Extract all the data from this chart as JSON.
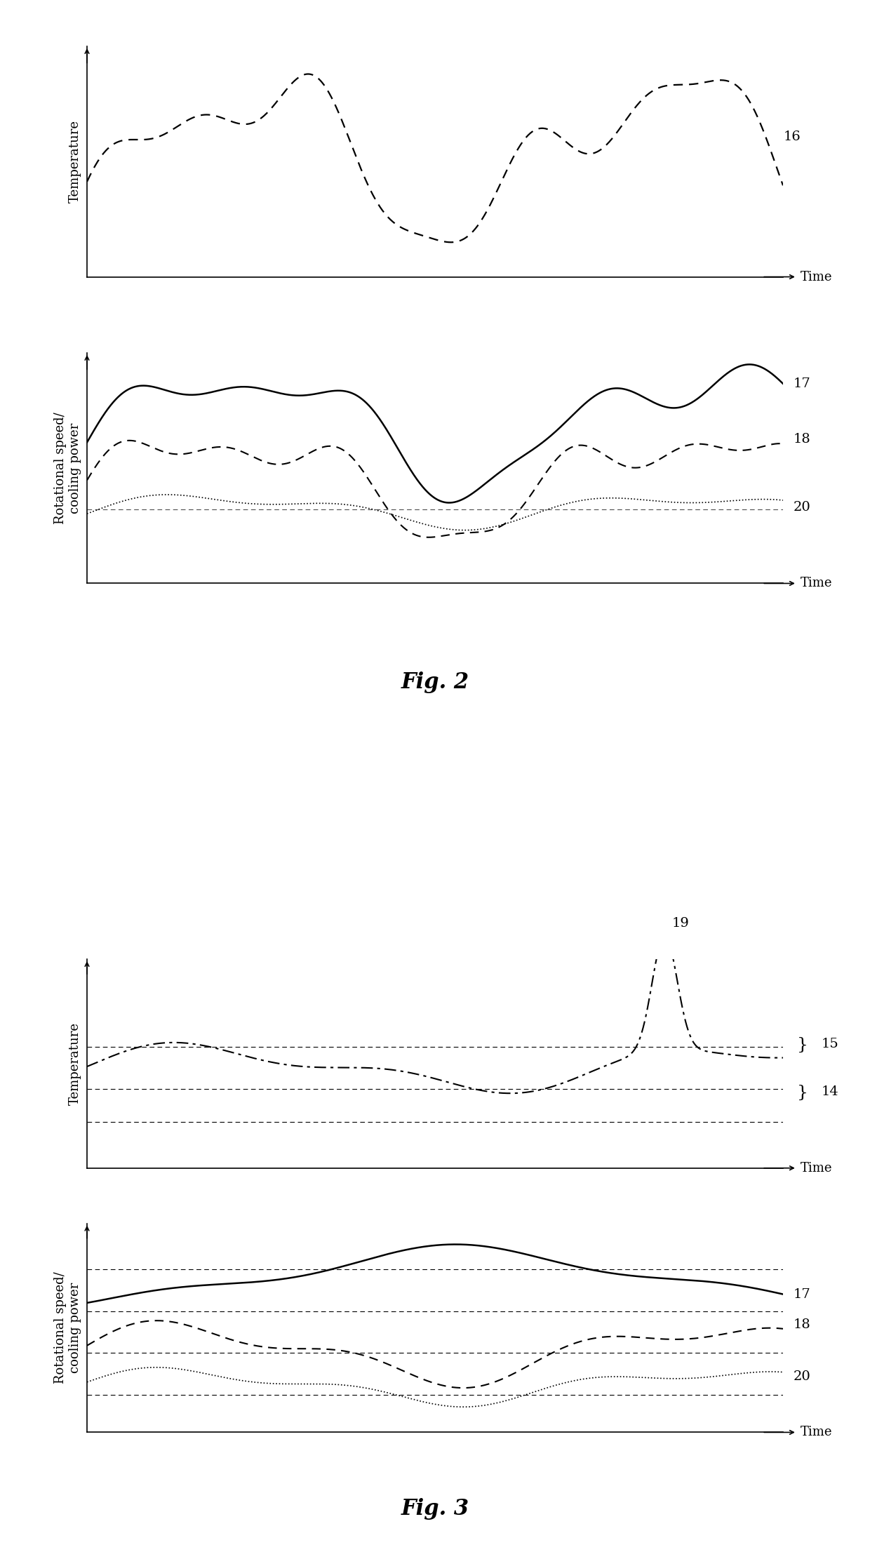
{
  "fig2_temp_label": "Temperature",
  "fig2_speed_label": "Rotational speed/\ncooling power",
  "fig3_temp_label": "Temperature",
  "fig3_speed_label": "Rotational speed/\ncooling power",
  "time_label": "Time",
  "fig2_caption": "Fig. 2",
  "fig3_caption": "Fig. 3",
  "line_color": "#000000",
  "bg_color": "#ffffff",
  "label_16": "16",
  "label_17": "17",
  "label_18": "18",
  "label_19": "19",
  "label_20": "20",
  "label_14": "14",
  "label_15": "15"
}
